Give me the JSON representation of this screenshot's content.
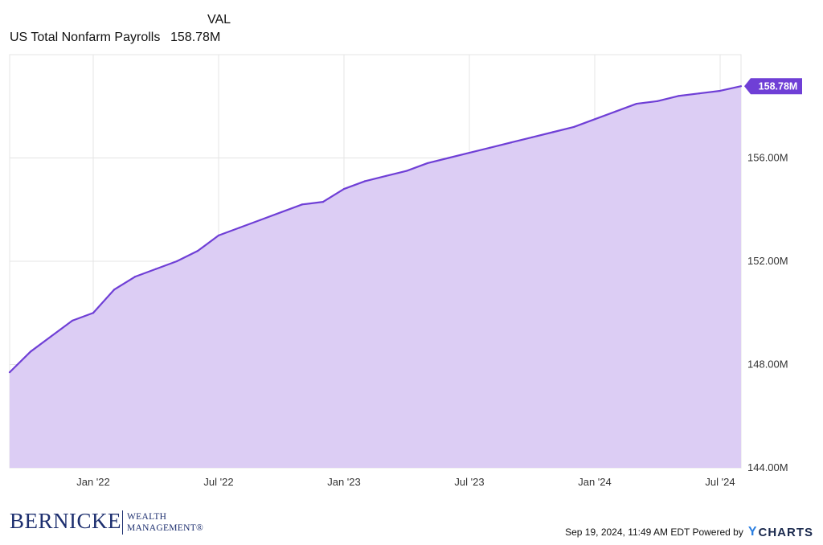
{
  "legend": {
    "header": "VAL",
    "series_name": "US Total Nonfarm Payrolls",
    "series_value": "158.78M"
  },
  "chart_data": {
    "type": "area",
    "series": [
      {
        "name": "US Total Nonfarm Payrolls",
        "x": [
          "2021-09",
          "2021-10",
          "2021-11",
          "2021-12",
          "2022-01",
          "2022-02",
          "2022-03",
          "2022-04",
          "2022-05",
          "2022-06",
          "2022-07",
          "2022-08",
          "2022-09",
          "2022-10",
          "2022-11",
          "2022-12",
          "2023-01",
          "2023-02",
          "2023-03",
          "2023-04",
          "2023-05",
          "2023-06",
          "2023-07",
          "2023-08",
          "2023-09",
          "2023-10",
          "2023-11",
          "2023-12",
          "2024-01",
          "2024-02",
          "2024-03",
          "2024-04",
          "2024-05",
          "2024-06",
          "2024-07",
          "2024-08"
        ],
        "values": [
          147.7,
          148.5,
          149.1,
          149.7,
          150.0,
          150.9,
          151.4,
          151.7,
          152.0,
          152.4,
          153.0,
          153.3,
          153.6,
          153.9,
          154.2,
          154.3,
          154.8,
          155.1,
          155.3,
          155.5,
          155.8,
          156.0,
          156.2,
          156.4,
          156.6,
          156.8,
          157.0,
          157.2,
          157.5,
          157.8,
          158.1,
          158.2,
          158.4,
          158.5,
          158.6,
          158.78
        ]
      }
    ],
    "color": "#6f3fd6",
    "fill_color": "#dccdf4",
    "ylim": [
      144,
      160
    ],
    "yticks": [
      144,
      148,
      152,
      156
    ],
    "ytick_labels": [
      "144.00M",
      "148.00M",
      "152.00M",
      "156.00M"
    ],
    "xticks": [
      "2022-01",
      "2022-07",
      "2023-01",
      "2023-07",
      "2024-01",
      "2024-07"
    ],
    "xtick_labels": [
      "Jan '22",
      "Jul '22",
      "Jan '23",
      "Jul '23",
      "Jan '24",
      "Jul '24"
    ],
    "last_value_label": "158.78M",
    "grid": true
  },
  "footer": {
    "brand_name": "BERNICKE",
    "brand_sub1": "WEALTH",
    "brand_sub2": "MANAGEMENT®",
    "timestamp": "Sep 19, 2024, 11:49 AM EDT Powered by",
    "logo_y": "Y",
    "logo_text": "CHARTS"
  }
}
